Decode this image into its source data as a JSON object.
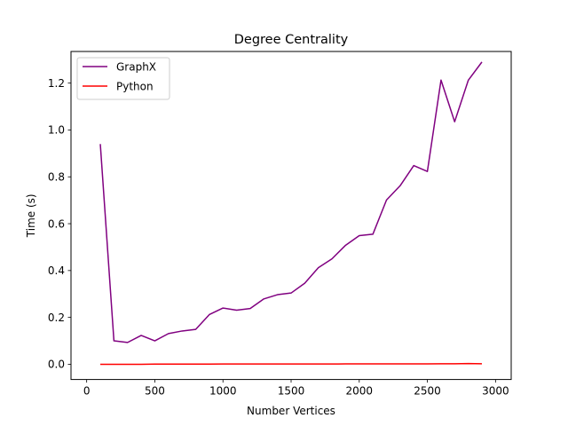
{
  "chart_data": {
    "type": "line",
    "title": "Degree Centrality",
    "xlabel": "Number Vertices",
    "ylabel": "Time (s)",
    "xlim": [
      -115,
      3115
    ],
    "ylim": [
      -0.065,
      1.335
    ],
    "xticks": [
      0,
      500,
      1000,
      1500,
      2000,
      2500,
      3000
    ],
    "xtick_labels": [
      "0",
      "500",
      "1000",
      "1500",
      "2000",
      "2500",
      "3000"
    ],
    "yticks": [
      0.0,
      0.2,
      0.4,
      0.6,
      0.8,
      1.0,
      1.2
    ],
    "ytick_labels": [
      "0.0",
      "0.2",
      "0.4",
      "0.6",
      "0.8",
      "1.0",
      "1.2"
    ],
    "legend_position": "top-left",
    "grid": false,
    "x": [
      100,
      200,
      300,
      400,
      500,
      600,
      700,
      800,
      900,
      1000,
      1100,
      1200,
      1300,
      1400,
      1500,
      1600,
      1700,
      1800,
      1900,
      2000,
      2100,
      2200,
      2300,
      2400,
      2500,
      2600,
      2700,
      2800,
      2900
    ],
    "series": [
      {
        "name": "GraphX",
        "color": "#800080",
        "values": [
          0.94,
          0.1,
          0.093,
          0.123,
          0.1,
          0.131,
          0.142,
          0.149,
          0.212,
          0.24,
          0.231,
          0.238,
          0.279,
          0.297,
          0.304,
          0.346,
          0.412,
          0.45,
          0.508,
          0.549,
          0.555,
          0.701,
          0.762,
          0.848,
          0.823,
          1.213,
          1.035,
          1.212,
          1.29
        ]
      },
      {
        "name": "Python",
        "color": "#ff0000",
        "values": [
          0.0,
          0.0,
          0.0,
          0.0,
          0.0005,
          0.0005,
          0.0005,
          0.0005,
          0.0005,
          0.001,
          0.001,
          0.001,
          0.001,
          0.001,
          0.001,
          0.001,
          0.001,
          0.001,
          0.0015,
          0.0015,
          0.0015,
          0.0015,
          0.0015,
          0.0015,
          0.0015,
          0.002,
          0.002,
          0.003,
          0.002
        ]
      }
    ]
  }
}
